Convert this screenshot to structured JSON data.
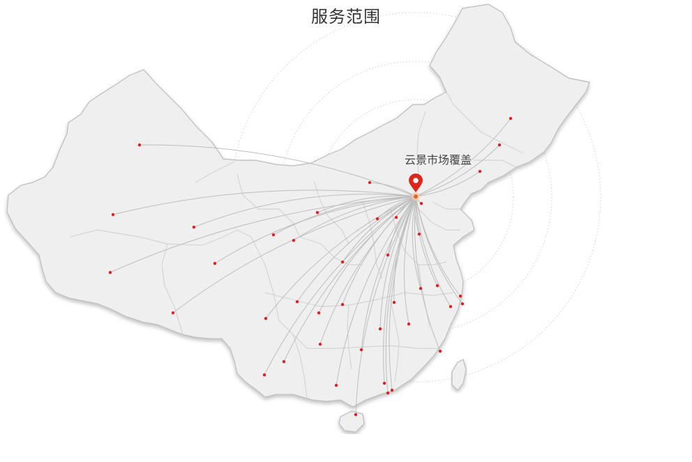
{
  "title": "服务范围",
  "map": {
    "hub_label": "云景市场覆盖",
    "colors": {
      "land": "#efefef",
      "border": "#c8c8c8",
      "route": "#bdbdbd",
      "dot": "#e02020",
      "pin": "#e0261c",
      "ring": "#cfcfcf"
    }
  }
}
